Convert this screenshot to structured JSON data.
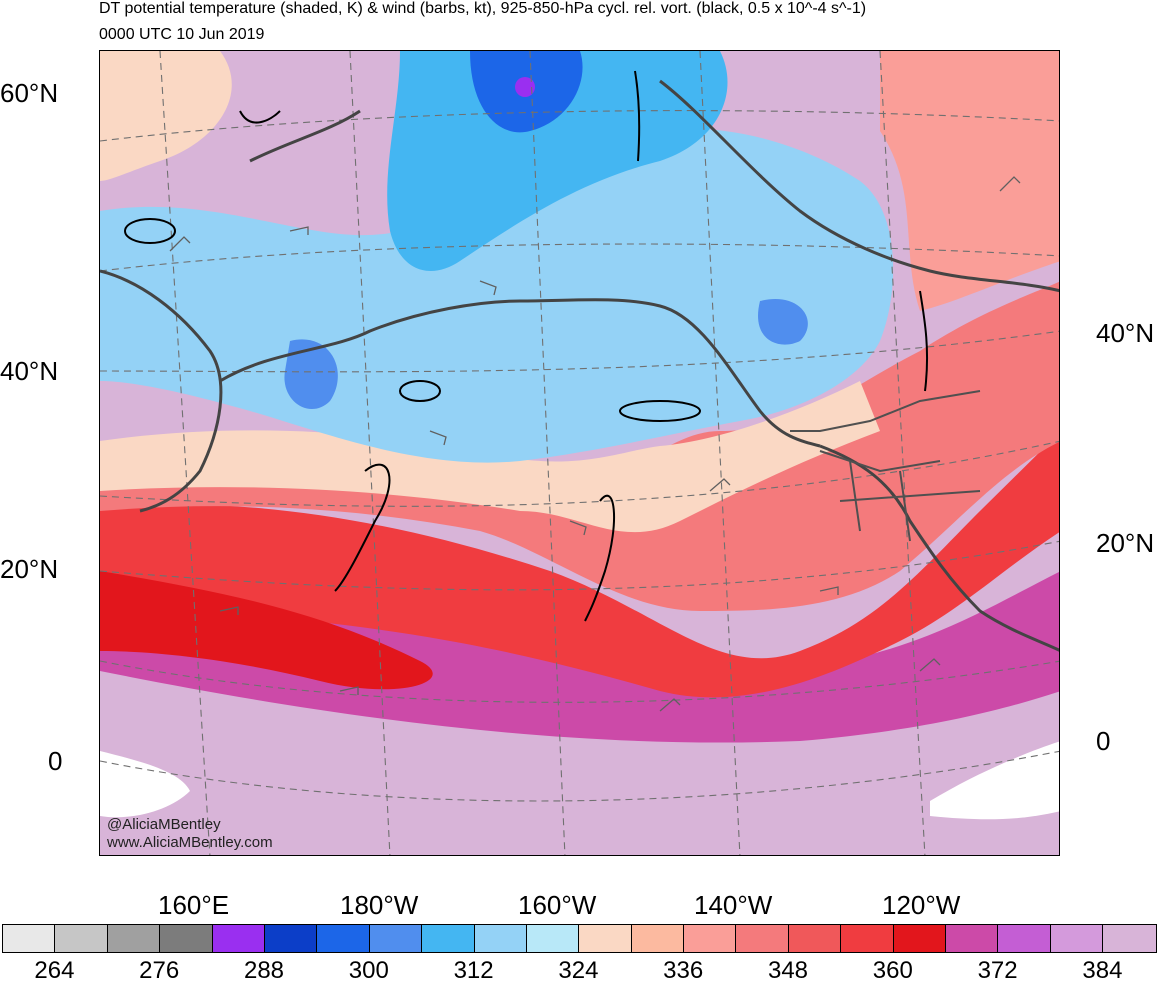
{
  "header": {
    "title": "DT potential temperature (shaded, K) & wind (barbs, kt), 925-850-hPa cycl. rel. vort. (black, 0.5 x 10^-4 s^-1)",
    "valid_time": "0000 UTC 10 Jun 2019"
  },
  "map": {
    "lat_labels_left": [
      "60°N",
      "40°N",
      "20°N",
      "0"
    ],
    "lat_labels_right": [
      "40°N",
      "20°N",
      "0"
    ],
    "lon_labels": [
      "160°E",
      "180°W",
      "160°W",
      "140°W",
      "120°W"
    ],
    "credit_handle": "@AliciaMBentley",
    "credit_site": "www.AliciaMBentley.com",
    "features": [
      "contours",
      "graticule",
      "wind-barbs",
      "coastlines"
    ]
  },
  "colorbar": {
    "colors": [
      "#e8e8e8",
      "#c6c6c6",
      "#a0a0a0",
      "#7c7c7c",
      "#9a2ff0",
      "#0c3ec8",
      "#1c66e8",
      "#508eee",
      "#44b6f2",
      "#94d2f6",
      "#b8e8f8",
      "#fad8c4",
      "#fcbaa0",
      "#fa9e98",
      "#f47a7c",
      "#f0585a",
      "#f03c40",
      "#e2161c",
      "#cc4aa8",
      "#c45ed4",
      "#d49adc",
      "#d8b4d8"
    ],
    "tick_labels": [
      "264",
      "276",
      "288",
      "300",
      "312",
      "324",
      "336",
      "348",
      "360",
      "372",
      "384"
    ]
  }
}
